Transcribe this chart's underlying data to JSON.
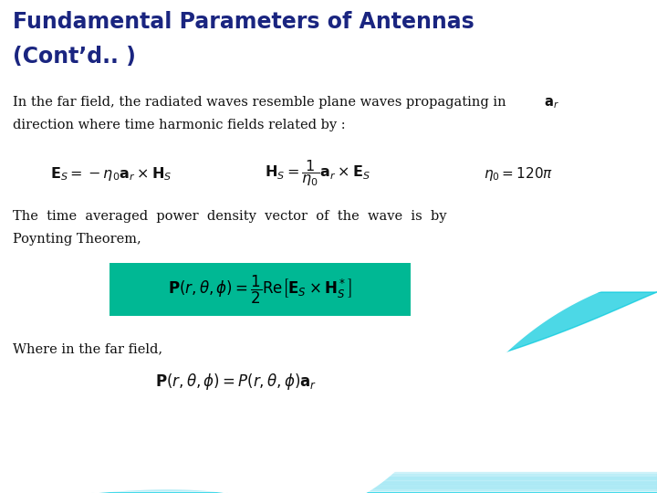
{
  "title_line1": "Fundamental Parameters of Antennas",
  "title_line2": "(Cont’d.. )",
  "title_color": "#1a2580",
  "title_fontsize": 17,
  "background_color": "#ffffff",
  "teal_box_color": "#00b894",
  "text_color": "#111111",
  "text_fontsize": 11,
  "eq_fontsize": 12,
  "eq1_latex": "$\\mathbf{E}_S = -\\eta_0\\mathbf{a}_r \\times \\mathbf{H}_S$",
  "eq2_latex": "$\\mathbf{H}_S = \\dfrac{1}{\\eta_0}\\mathbf{a}_r \\times \\mathbf{E}_S$",
  "eq3_latex": "$\\eta_0 = 120\\pi$",
  "eq_box_latex": "$\\mathbf{P}(r,\\theta,\\phi)=\\dfrac{1}{2}\\mathrm{Re}\\left[\\mathbf{E}_S \\times \\mathbf{H}_S^*\\right]$",
  "para2_line1": "The  time  averaged  power  density  vector  of  the  wave  is  by",
  "para2_line2": "Poynting Theorem,",
  "para3": "Where in the far field,",
  "eq4_latex": "$\\mathbf{P}(r,\\theta,\\phi)= P(r,\\theta,\\phi)\\mathbf{a}_r$",
  "wave_cyan_bright": "#00e5f5",
  "wave_cyan_mid": "#00c8dc",
  "wave_cyan_dark": "#00a0bc",
  "wave_stripe_light": "#b0eef8",
  "wave_stripe_dark": "#008fb0"
}
